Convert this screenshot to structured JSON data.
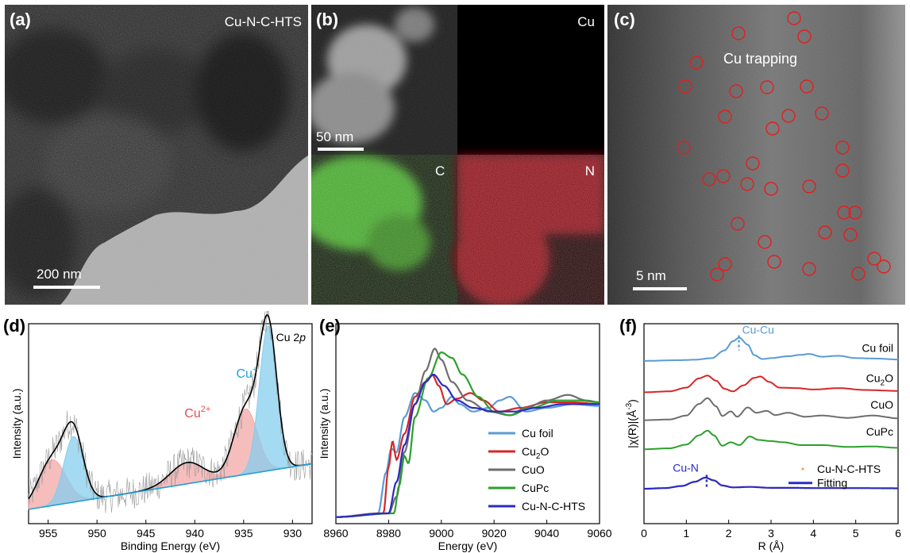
{
  "panel_a": {
    "label": "(a)",
    "sample": "Cu-N-C-HTS",
    "scale": "200 nm"
  },
  "panel_b": {
    "label": "(b)",
    "scale": "50 nm",
    "maps": [
      "Cu",
      "C",
      "N"
    ]
  },
  "panel_c": {
    "label": "(c)",
    "annotation": "Cu trapping",
    "scale": "5 nm"
  },
  "colors": {
    "circle": "#e02020",
    "cu_map": "#e8e05a",
    "c_map": "#5fd43a",
    "n_map": "#c8141e"
  },
  "chart_data": [
    {
      "type": "line",
      "panel": "(d)",
      "title": "",
      "annotation": "Cu 2p",
      "xlabel": "Binding Energy (eV)",
      "ylabel": "Intensity (a.u.)",
      "xlim": [
        957,
        928
      ],
      "xticks": [
        955,
        950,
        945,
        940,
        935,
        930
      ],
      "peak_labels": [
        {
          "text": "Cu",
          "sup": "+",
          "color": "#1fa0d8",
          "x": 932.6
        },
        {
          "text": "Cu",
          "sup": "2+",
          "color": "#e05050",
          "x": 934.8
        }
      ],
      "components": [
        {
          "label": "Cu2+",
          "center": 954.6,
          "height": 0.3,
          "width": 1.4,
          "fill": "#f3a7a7"
        },
        {
          "label": "Cu+",
          "center": 952.4,
          "height": 0.43,
          "width": 1.0,
          "fill": "#86cdee"
        },
        {
          "label": "Cu2+",
          "center": 940.8,
          "height": 0.14,
          "width": 1.7,
          "fill": "#f3a7a7"
        },
        {
          "label": "Cu2+",
          "center": 934.8,
          "height": 0.43,
          "width": 1.2,
          "fill": "#f3a7a7"
        },
        {
          "label": "Cu+",
          "center": 932.5,
          "height": 0.95,
          "width": 0.9,
          "fill": "#86cdee"
        }
      ],
      "baseline": {
        "start": 0.0,
        "end": 0.3
      },
      "series": [
        {
          "name": "",
          "color": "#000000",
          "role": "envelope"
        },
        {
          "name": "",
          "color": "#9a9a9a",
          "role": "raw"
        }
      ]
    },
    {
      "type": "line",
      "panel": "(e)",
      "xlabel": "Energy (eV)",
      "ylabel": "Intensity (a.u.)",
      "xlim": [
        8960,
        9060
      ],
      "xticks": [
        8960,
        8980,
        9000,
        9020,
        9040,
        9060
      ],
      "series": [
        {
          "name": "Cu foil",
          "color": "#5b9bd5",
          "points": [
            [
              8960,
              0.01
            ],
            [
              8976,
              0.03
            ],
            [
              8979,
              0.25
            ],
            [
              8981,
              0.38
            ],
            [
              8983,
              0.36
            ],
            [
              8986,
              0.55
            ],
            [
              8990,
              0.68
            ],
            [
              8994,
              0.64
            ],
            [
              8997,
              0.58
            ],
            [
              9000,
              0.6
            ],
            [
              9004,
              0.66
            ],
            [
              9007,
              0.62
            ],
            [
              9012,
              0.58
            ],
            [
              9018,
              0.6
            ],
            [
              9022,
              0.64
            ],
            [
              9026,
              0.66
            ],
            [
              9032,
              0.58
            ],
            [
              9040,
              0.6
            ],
            [
              9050,
              0.62
            ],
            [
              9060,
              0.61
            ]
          ]
        },
        {
          "name": "Cu2O",
          "color": "#d62728",
          "points": [
            [
              8960,
              0.01
            ],
            [
              8978,
              0.03
            ],
            [
              8980,
              0.28
            ],
            [
              8981.5,
              0.42
            ],
            [
              8983,
              0.32
            ],
            [
              8986,
              0.46
            ],
            [
              8990,
              0.66
            ],
            [
              8994,
              0.74
            ],
            [
              8996.5,
              0.78
            ],
            [
              8999,
              0.72
            ],
            [
              9002,
              0.62
            ],
            [
              9006,
              0.65
            ],
            [
              9011,
              0.68
            ],
            [
              9016,
              0.64
            ],
            [
              9022,
              0.58
            ],
            [
              9030,
              0.6
            ],
            [
              9040,
              0.63
            ],
            [
              9050,
              0.63
            ],
            [
              9060,
              0.62
            ]
          ]
        },
        {
          "name": "CuO",
          "color": "#6e6e6e",
          "points": [
            [
              8960,
              0.01
            ],
            [
              8980,
              0.03
            ],
            [
              8983,
              0.12
            ],
            [
              8986,
              0.36
            ],
            [
              8990,
              0.62
            ],
            [
              8994,
              0.8
            ],
            [
              8997.5,
              0.92
            ],
            [
              9000,
              0.86
            ],
            [
              9004,
              0.74
            ],
            [
              9010,
              0.64
            ],
            [
              9018,
              0.58
            ],
            [
              9026,
              0.56
            ],
            [
              9032,
              0.6
            ],
            [
              9040,
              0.64
            ],
            [
              9048,
              0.67
            ],
            [
              9055,
              0.64
            ],
            [
              9060,
              0.63
            ]
          ]
        },
        {
          "name": "CuPc",
          "color": "#2ca02c",
          "points": [
            [
              8960,
              0.01
            ],
            [
              8982,
              0.03
            ],
            [
              8984,
              0.18
            ],
            [
              8986,
              0.34
            ],
            [
              8987.5,
              0.3
            ],
            [
              8990,
              0.55
            ],
            [
              8995,
              0.76
            ],
            [
              9000,
              0.9
            ],
            [
              9004,
              0.87
            ],
            [
              9008,
              0.78
            ],
            [
              9014,
              0.66
            ],
            [
              9020,
              0.58
            ],
            [
              9026,
              0.56
            ],
            [
              9034,
              0.6
            ],
            [
              9044,
              0.64
            ],
            [
              9052,
              0.64
            ],
            [
              9060,
              0.63
            ]
          ]
        },
        {
          "name": "Cu-N-C-HTS",
          "color": "#2b2bc4",
          "points": [
            [
              8960,
              0.01
            ],
            [
              8980,
              0.03
            ],
            [
              8983,
              0.2
            ],
            [
              8986,
              0.4
            ],
            [
              8990,
              0.62
            ],
            [
              8994,
              0.74
            ],
            [
              8997,
              0.78
            ],
            [
              9001,
              0.72
            ],
            [
              9006,
              0.64
            ],
            [
              9012,
              0.6
            ],
            [
              9020,
              0.58
            ],
            [
              9028,
              0.58
            ],
            [
              9036,
              0.6
            ],
            [
              9046,
              0.62
            ],
            [
              9054,
              0.62
            ],
            [
              9060,
              0.62
            ]
          ]
        }
      ]
    },
    {
      "type": "line",
      "panel": "(f)",
      "xlabel": "R (Å)",
      "ylabel": "|χ(R)|(Å-3)",
      "xlim": [
        0,
        6
      ],
      "xticks": [
        0,
        1,
        2,
        3,
        4,
        5,
        6
      ],
      "markers": [
        {
          "text": "Cu-Cu",
          "x": 2.24,
          "color": "#5b9bd5"
        },
        {
          "text": "Cu-N",
          "x": 1.48,
          "color": "#2b2bc4"
        }
      ],
      "series": [
        {
          "name": "Cu foil",
          "color": "#5b9bd5",
          "offset": 0.7,
          "points": [
            [
              0,
              0.0
            ],
            [
              0.8,
              0.003
            ],
            [
              1.2,
              0.005
            ],
            [
              1.6,
              0.012
            ],
            [
              1.9,
              0.045
            ],
            [
              2.1,
              0.085
            ],
            [
              2.25,
              0.1
            ],
            [
              2.45,
              0.07
            ],
            [
              2.6,
              0.025
            ],
            [
              2.8,
              0.008
            ],
            [
              3.0,
              0.012
            ],
            [
              3.4,
              0.02
            ],
            [
              3.7,
              0.026
            ],
            [
              3.9,
              0.03
            ],
            [
              4.2,
              0.018
            ],
            [
              4.6,
              0.022
            ],
            [
              5.0,
              0.012
            ],
            [
              5.5,
              0.01
            ],
            [
              6.0,
              0.006
            ]
          ]
        },
        {
          "name": "Cu2O",
          "color": "#d62728",
          "offset": 0.565,
          "points": [
            [
              0,
              0.0
            ],
            [
              0.6,
              0.004
            ],
            [
              1.0,
              0.02
            ],
            [
              1.3,
              0.06
            ],
            [
              1.5,
              0.072
            ],
            [
              1.7,
              0.05
            ],
            [
              1.9,
              0.015
            ],
            [
              2.1,
              0.004
            ],
            [
              2.35,
              0.03
            ],
            [
              2.6,
              0.062
            ],
            [
              2.75,
              0.068
            ],
            [
              2.95,
              0.045
            ],
            [
              3.2,
              0.02
            ],
            [
              3.6,
              0.018
            ],
            [
              4.0,
              0.012
            ],
            [
              4.6,
              0.018
            ],
            [
              5.2,
              0.01
            ],
            [
              6.0,
              0.006
            ]
          ]
        },
        {
          "name": "CuO",
          "color": "#6e6e6e",
          "offset": 0.445,
          "points": [
            [
              0,
              0.0
            ],
            [
              0.6,
              0.003
            ],
            [
              1.0,
              0.02
            ],
            [
              1.3,
              0.07
            ],
            [
              1.5,
              0.095
            ],
            [
              1.7,
              0.06
            ],
            [
              1.85,
              0.018
            ],
            [
              2.05,
              0.038
            ],
            [
              2.2,
              0.015
            ],
            [
              2.45,
              0.055
            ],
            [
              2.65,
              0.032
            ],
            [
              2.9,
              0.04
            ],
            [
              3.1,
              0.022
            ],
            [
              3.4,
              0.032
            ],
            [
              3.8,
              0.015
            ],
            [
              4.2,
              0.02
            ],
            [
              4.8,
              0.01
            ],
            [
              5.4,
              0.02
            ],
            [
              6.0,
              0.008
            ]
          ]
        },
        {
          "name": "CuPc",
          "color": "#2ca02c",
          "offset": 0.32,
          "points": [
            [
              0,
              0.0
            ],
            [
              0.6,
              0.004
            ],
            [
              1.0,
              0.02
            ],
            [
              1.3,
              0.06
            ],
            [
              1.5,
              0.08
            ],
            [
              1.65,
              0.06
            ],
            [
              1.85,
              0.015
            ],
            [
              2.05,
              0.03
            ],
            [
              2.25,
              0.018
            ],
            [
              2.5,
              0.055
            ],
            [
              2.7,
              0.04
            ],
            [
              3.0,
              0.035
            ],
            [
              3.3,
              0.03
            ],
            [
              3.7,
              0.018
            ],
            [
              4.2,
              0.018
            ],
            [
              4.8,
              0.01
            ],
            [
              5.4,
              0.012
            ],
            [
              6.0,
              0.006
            ]
          ]
        },
        {
          "name": "Cu-N-C-HTS",
          "color": "#f4a460",
          "offset": 0.15,
          "points": [
            [
              0,
              0.0
            ],
            [
              0.5,
              0.003
            ],
            [
              0.9,
              0.012
            ],
            [
              1.2,
              0.03
            ],
            [
              1.45,
              0.048
            ],
            [
              1.65,
              0.036
            ],
            [
              1.85,
              0.014
            ],
            [
              2.1,
              0.006
            ],
            [
              2.5,
              0.008
            ],
            [
              3.0,
              0.004
            ],
            [
              3.5,
              0.004
            ],
            [
              4.0,
              0.003
            ],
            [
              5.0,
              0.003
            ],
            [
              6.0,
              0.002
            ]
          ]
        },
        {
          "name": "Fitting",
          "color": "#2b2bc4",
          "offset": 0.15,
          "points": [
            [
              0,
              0.0
            ],
            [
              0.5,
              0.003
            ],
            [
              0.9,
              0.012
            ],
            [
              1.2,
              0.03
            ],
            [
              1.45,
              0.048
            ],
            [
              1.65,
              0.036
            ],
            [
              1.85,
              0.014
            ],
            [
              2.1,
              0.006
            ],
            [
              2.5,
              0.008
            ],
            [
              3.0,
              0.004
            ],
            [
              3.5,
              0.004
            ],
            [
              4.0,
              0.003
            ],
            [
              5.0,
              0.003
            ],
            [
              6.0,
              0.002
            ]
          ]
        }
      ]
    }
  ]
}
